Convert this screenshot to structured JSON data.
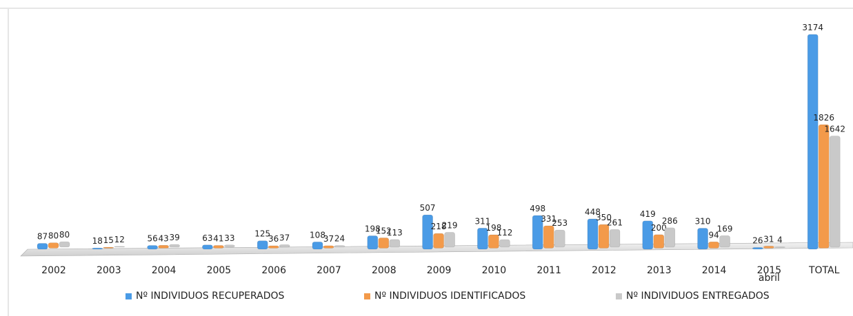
{
  "chart_data": {
    "type": "bar",
    "categories": [
      "2002",
      "2003",
      "2004",
      "2005",
      "2006",
      "2007",
      "2008",
      "2009",
      "2010",
      "2011",
      "2012",
      "2013",
      "2014",
      "2015\nabril",
      "TOTAL"
    ],
    "series": [
      {
        "name": "Nº INDIVIDUOS RECUPERADOS",
        "color": "#4a9be6",
        "values": [
          87,
          18,
          56,
          63,
          125,
          108,
          198,
          507,
          311,
          498,
          448,
          419,
          310,
          26,
          3174
        ]
      },
      {
        "name": "Nº INDIVIDUOS IDENTIFICADOS",
        "color": "#f39a4a",
        "values": [
          80,
          15,
          43,
          41,
          36,
          37,
          152,
          218,
          198,
          331,
          350,
          200,
          94,
          31,
          1826
        ]
      },
      {
        "name": "Nº INDIVIDUOS ENTREGADOS",
        "color": "#c9c9c9",
        "values": [
          80,
          12,
          39,
          33,
          37,
          24,
          113,
          219,
          112,
          253,
          261,
          286,
          169,
          4,
          1642
        ]
      }
    ]
  }
}
